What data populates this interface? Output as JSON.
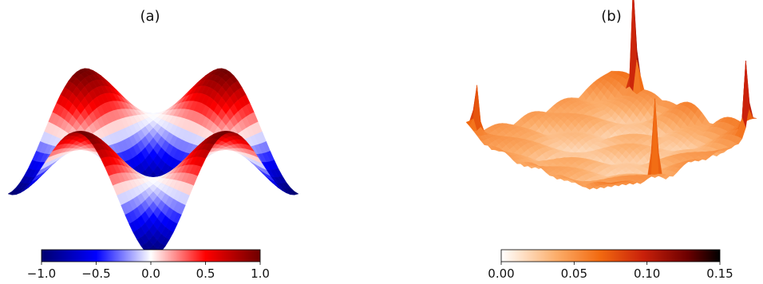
{
  "chart_data": [
    {
      "type": "surface3d",
      "title": "(a)",
      "colormap": "bwr",
      "colormap_stops": [
        "#00006e",
        "#0000ff",
        "#ffffff",
        "#ff0000",
        "#6e0000"
      ],
      "colorbar": {
        "range": [
          -1.0,
          1.0
        ],
        "ticks": [
          -1.0,
          -0.5,
          0.0,
          0.5,
          1.0
        ],
        "tick_labels": [
          "−1.0",
          "−0.5",
          "0.0",
          "0.5",
          "1.0"
        ]
      },
      "surface": {
        "function": "smooth sinusoidal field with two peaks and two troughs",
        "z_range": [
          -1.0,
          1.0
        ]
      }
    },
    {
      "type": "surface3d",
      "title": "(b)",
      "colormap": "gist_heat_r",
      "colormap_stops": [
        "#ffffff",
        "#fcae6b",
        "#f26a10",
        "#c9200a",
        "#6e0000",
        "#000000"
      ],
      "colorbar": {
        "range": [
          0.0,
          0.15
        ],
        "ticks": [
          0.0,
          0.05,
          0.1,
          0.15
        ],
        "tick_labels": [
          "0.00",
          "0.05",
          "0.10",
          "0.15"
        ]
      },
      "surface": {
        "function": "low rippled error field with sharp spikes near edges",
        "z_range": [
          0.0,
          0.15
        ]
      }
    }
  ]
}
